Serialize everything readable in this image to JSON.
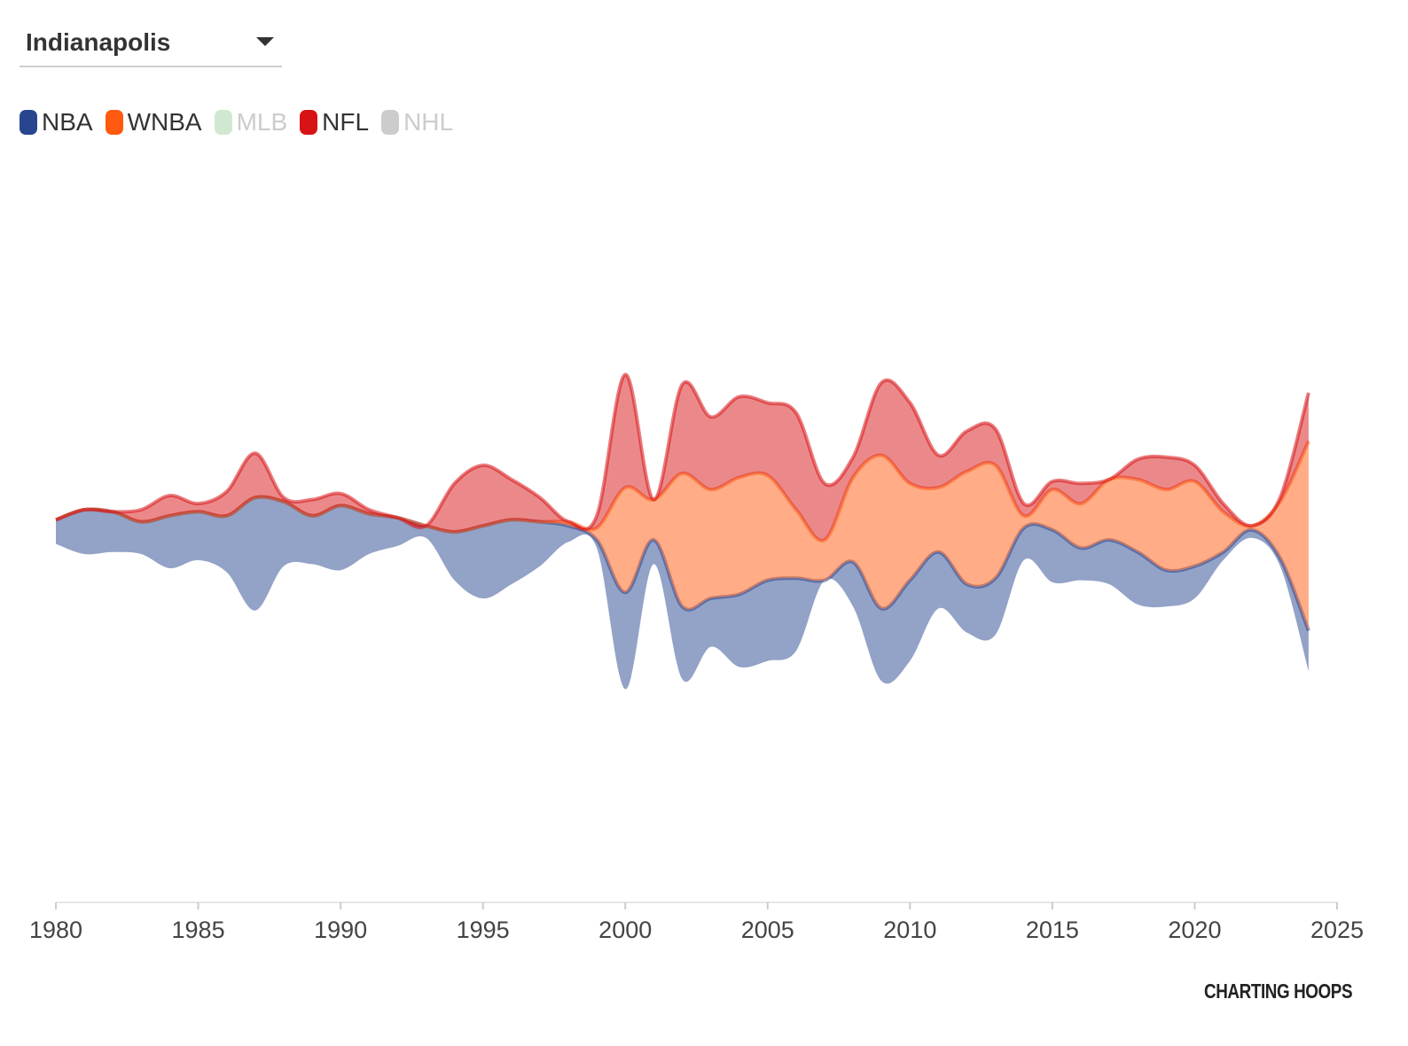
{
  "selector": {
    "label": "Indianapolis"
  },
  "legend": [
    {
      "label": "NBA",
      "color": "#27468f",
      "active": true
    },
    {
      "label": "WNBA",
      "color": "#ff5a0f",
      "active": true
    },
    {
      "label": "MLB",
      "color": "#cfe8cf",
      "active": false
    },
    {
      "label": "NFL",
      "color": "#d71315",
      "active": true
    },
    {
      "label": "NHL",
      "color": "#cccccc",
      "active": false
    }
  ],
  "logo": {
    "text": "CHARTING HOOPS"
  },
  "chart_data": {
    "type": "area",
    "layout": "streamgraph",
    "x": [
      1980,
      1981,
      1982,
      1983,
      1984,
      1985,
      1986,
      1987,
      1988,
      1989,
      1990,
      1991,
      1992,
      1993,
      1994,
      1995,
      1996,
      1997,
      1998,
      1999,
      2000,
      2001,
      2002,
      2003,
      2004,
      2005,
      2006,
      2007,
      2008,
      2009,
      2010,
      2011,
      2012,
      2013,
      2014,
      2015,
      2016,
      2017,
      2018,
      2019,
      2020,
      2021,
      2022,
      2023,
      2024
    ],
    "xlim": [
      1980,
      2025
    ],
    "xticks": [
      "1980",
      "1985",
      "1990",
      "1995",
      "2000",
      "2005",
      "2010",
      "2015",
      "2020",
      "2025"
    ],
    "series": [
      {
        "name": "NBA",
        "color": "#27468f",
        "values": [
          6,
          11,
          10,
          8,
          13,
          12,
          14,
          28,
          16,
          12,
          16,
          10,
          7,
          3,
          12,
          18,
          16,
          11,
          4,
          2,
          24,
          6,
          18,
          12,
          18,
          20,
          18,
          0,
          11,
          18,
          20,
          14,
          12,
          14,
          8,
          13,
          8,
          11,
          13,
          9,
          8,
          2,
          2,
          2,
          10
        ]
      },
      {
        "name": "WNBA",
        "color": "#ff5a0f",
        "values": [
          0,
          0,
          0,
          0,
          0,
          0,
          0,
          0,
          0,
          0,
          0,
          0,
          0,
          0,
          0,
          0,
          0,
          0,
          1,
          3,
          26,
          10,
          33,
          27,
          29,
          26,
          17,
          10,
          21,
          38,
          24,
          16,
          28,
          28,
          3,
          10,
          11,
          15,
          18,
          20,
          21,
          10,
          1,
          14,
          47
        ]
      },
      {
        "name": "NFL",
        "color": "#d71315",
        "values": [
          0,
          0,
          0,
          3,
          5,
          2,
          6,
          11,
          1,
          4,
          3,
          1,
          0,
          0,
          12,
          15,
          10,
          6,
          0,
          3,
          28,
          0,
          22,
          18,
          20,
          18,
          24,
          14,
          5,
          18,
          20,
          8,
          10,
          9,
          3,
          2,
          5,
          0,
          5,
          8,
          4,
          2,
          0,
          1,
          12
        ]
      }
    ]
  }
}
